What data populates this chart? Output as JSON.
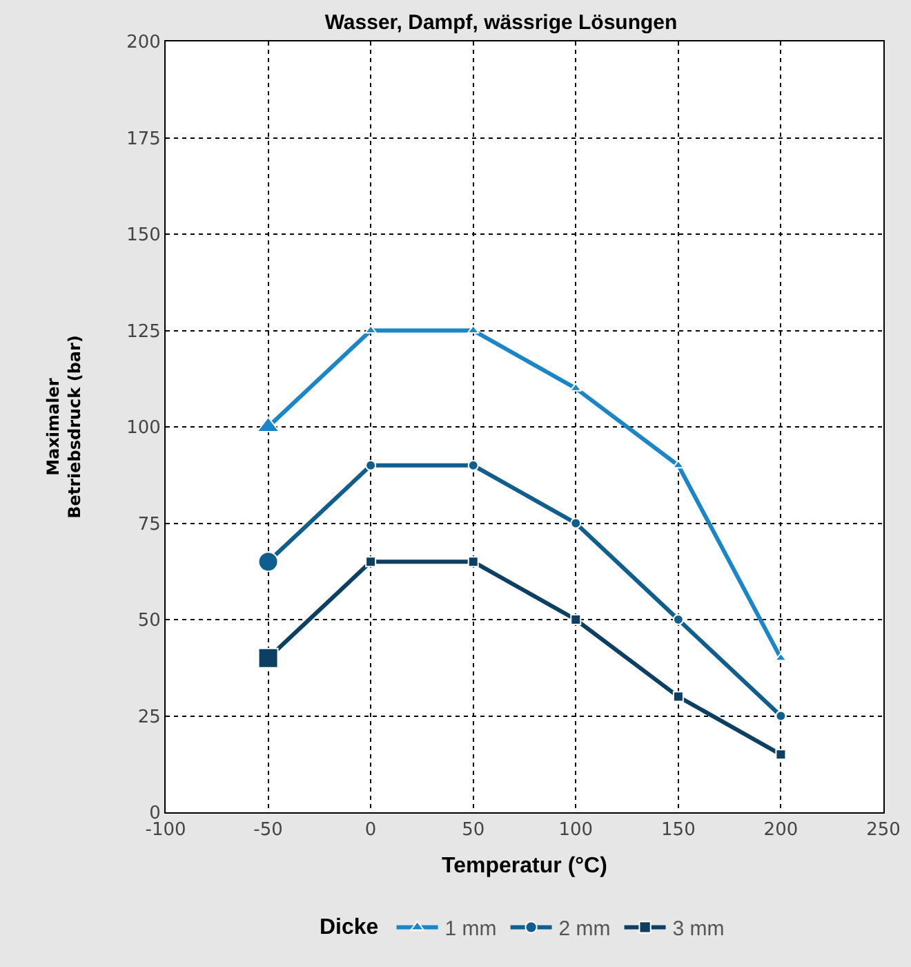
{
  "chart_data": {
    "type": "line",
    "title": "Wasser, Dampf, wässrige Lösungen",
    "xlabel": "Temperatur (°C)",
    "ylabel": "Maximaler\nBetriebsdruck (bar)",
    "legend_title": "Dicke",
    "x": [
      -50,
      0,
      50,
      100,
      150,
      200
    ],
    "series": [
      {
        "name": "1 mm",
        "color": "#1a86c8",
        "marker": "triangle",
        "values": [
          100,
          125,
          125,
          110,
          90,
          40
        ]
      },
      {
        "name": "2 mm",
        "color": "#0f5e8e",
        "marker": "circle",
        "values": [
          65,
          90,
          90,
          75,
          50,
          25
        ]
      },
      {
        "name": "3 mm",
        "color": "#0c3f62",
        "marker": "square",
        "values": [
          40,
          65,
          65,
          50,
          30,
          15
        ]
      }
    ],
    "xlim": [
      -100,
      250
    ],
    "xticks": [
      -100,
      -50,
      0,
      50,
      100,
      150,
      200,
      250
    ],
    "ylim": [
      0,
      200
    ],
    "yticks": [
      0,
      25,
      50,
      75,
      100,
      125,
      150,
      175,
      200
    ],
    "grid": true,
    "legend": "bottom",
    "line_style": "solid"
  }
}
